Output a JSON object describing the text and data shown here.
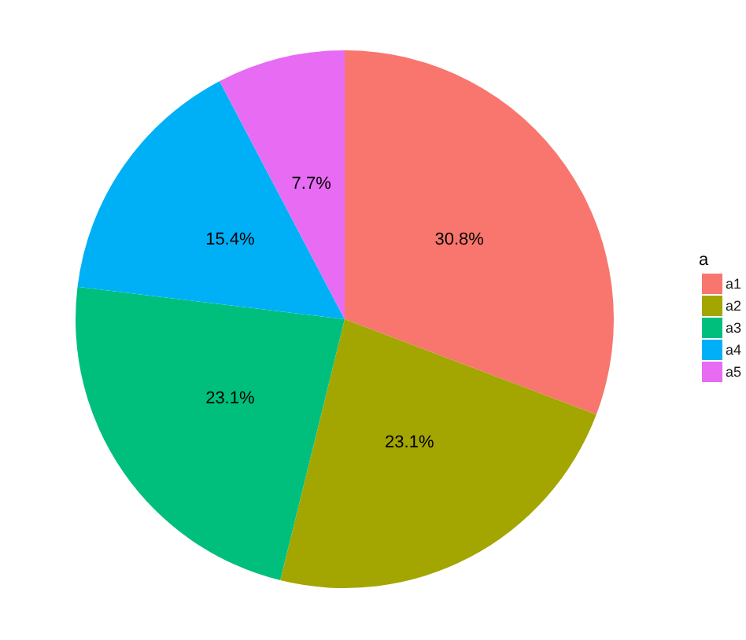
{
  "chart_data": {
    "type": "pie",
    "legend_title": "a",
    "categories": [
      "a1",
      "a2",
      "a3",
      "a4",
      "a5"
    ],
    "values": [
      30.8,
      23.1,
      23.1,
      15.4,
      7.7
    ],
    "value_labels": [
      "30.8%",
      "23.1%",
      "23.1%",
      "15.4%",
      "7.7%"
    ],
    "colors": [
      "#f8766d",
      "#a3a500",
      "#00bf7d",
      "#00b0f6",
      "#e76bf3"
    ],
    "legend": "right"
  }
}
